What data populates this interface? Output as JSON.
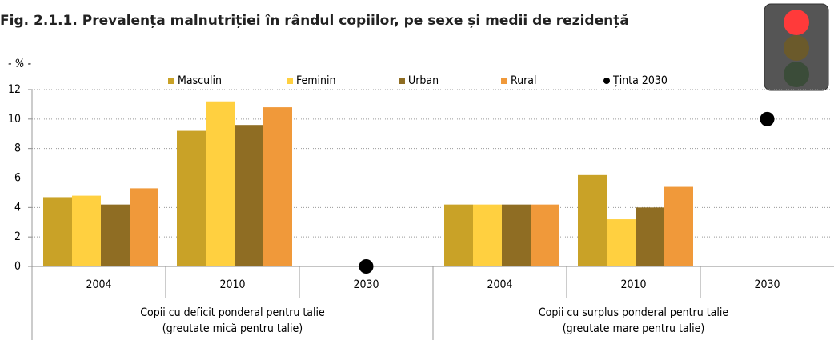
{
  "chart_data": {
    "type": "bar",
    "title": "Fig. 2.1.1. Prevalența malnutriției în rândul copiilor, pe sexe și medii de rezidență",
    "ylabel": "- % -",
    "categories": [
      "2004",
      "2010",
      "2030",
      "2004",
      "2010",
      "2030"
    ],
    "groups": [
      {
        "lines": [
          "Copii cu deficit ponderal pentru talie",
          "(greutate mică pentru talie)"
        ],
        "size": 3
      },
      {
        "lines": [
          "Copii cu surplus ponderal pentru talie",
          "(greutate mare pentru talie)"
        ],
        "size": 3
      }
    ],
    "series": [
      {
        "name": "Masculin",
        "color": "#c9a227",
        "values": [
          4.7,
          9.2,
          null,
          4.2,
          6.2,
          null
        ]
      },
      {
        "name": "Feminin",
        "color": "#ffd040",
        "values": [
          4.8,
          11.2,
          null,
          4.2,
          3.2,
          null
        ]
      },
      {
        "name": "Urban",
        "color": "#8f6d23",
        "values": [
          4.2,
          9.6,
          null,
          4.2,
          4.0,
          null
        ]
      },
      {
        "name": "Rural",
        "color": "#f0993a",
        "values": [
          5.3,
          10.8,
          null,
          4.2,
          5.4,
          null
        ]
      },
      {
        "name": "Ținta 2030",
        "color": "#000000",
        "type": "scatter",
        "values": [
          null,
          null,
          0,
          null,
          null,
          10
        ]
      }
    ],
    "ylim": [
      0,
      12
    ],
    "yticks": [
      0,
      2,
      4,
      6,
      8,
      10,
      12
    ],
    "grid": true
  }
}
